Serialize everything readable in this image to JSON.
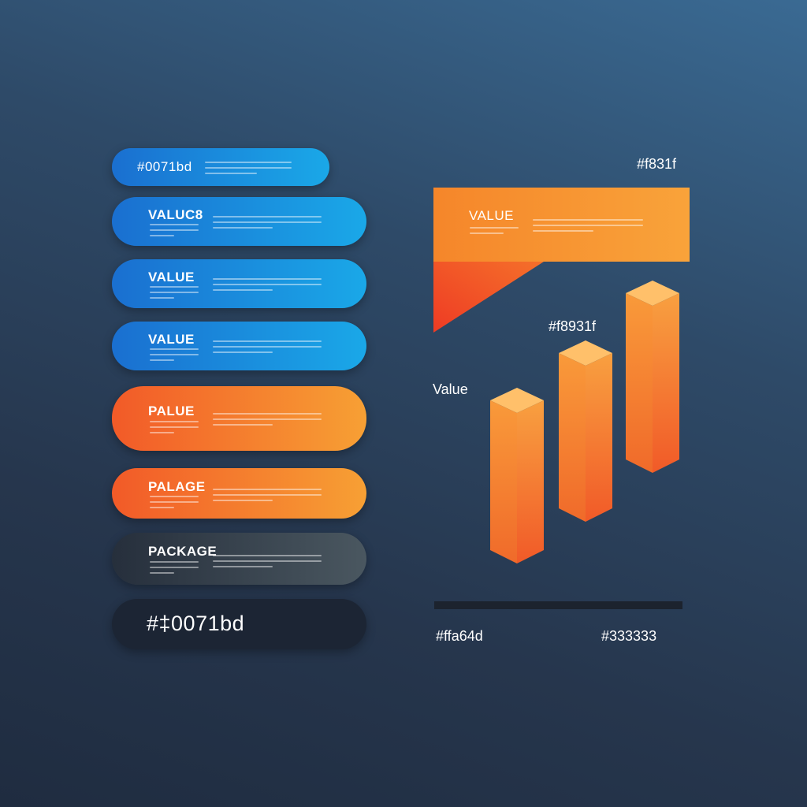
{
  "pills": [
    {
      "label": "#0071bd",
      "style": "blue"
    },
    {
      "label": "VALUC8",
      "style": "blue"
    },
    {
      "label": "VALUE",
      "style": "blue"
    },
    {
      "label": "VALUE",
      "style": "blue"
    },
    {
      "label": "PALUE",
      "style": "orange"
    },
    {
      "label": "PALAGE",
      "style": "orange"
    },
    {
      "label": "PACKAGE",
      "style": "gray"
    },
    {
      "label": "#‡0071bd",
      "style": "dark"
    }
  ],
  "callout": {
    "label": "VALUE",
    "color_label": "#f831f"
  },
  "chart": {
    "value_label": "Value",
    "bar_label": "#f8931f",
    "left_label": "#ffa64d",
    "right_label": "#333333"
  },
  "colors": {
    "blue": "#0071bd",
    "orange": "#f8931f",
    "light_orange": "#ffa64d",
    "dark": "#333333"
  }
}
